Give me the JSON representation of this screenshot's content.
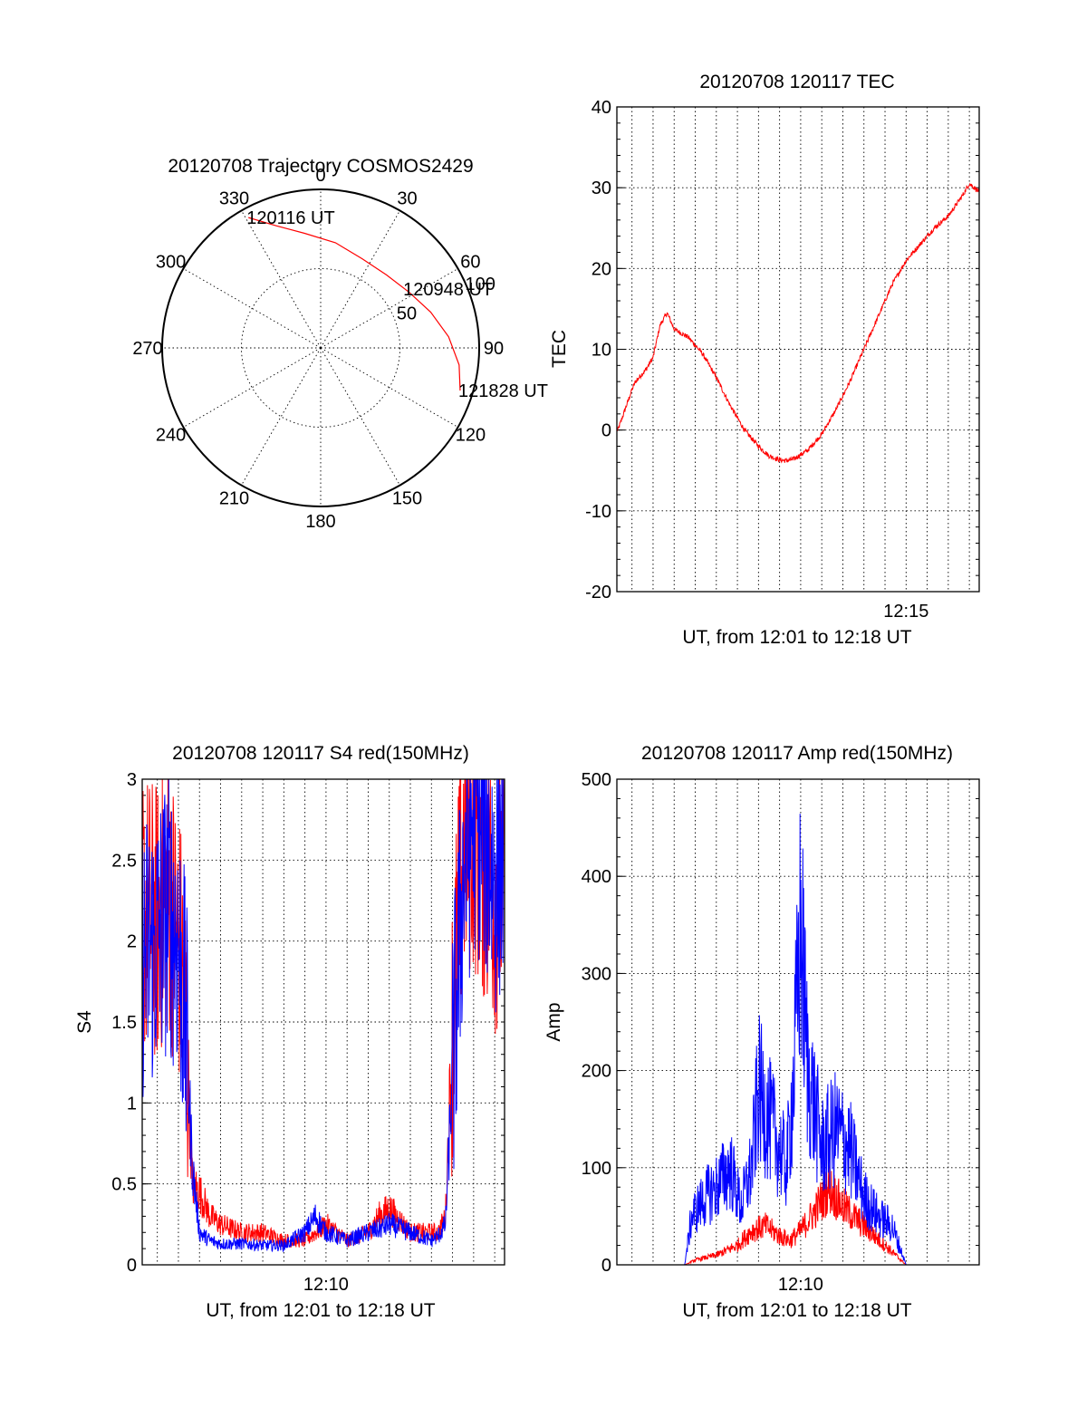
{
  "colors": {
    "red": "#ff0000",
    "blue": "#0000ff"
  },
  "chart_data": [
    {
      "type": "polar",
      "title": "20120708 Trajectory COSMOS2429",
      "azimuth_labels": [
        "0",
        "30",
        "60",
        "90",
        "120",
        "150",
        "180",
        "210",
        "240",
        "270",
        "300",
        "330"
      ],
      "radial_labels": [
        "50",
        "100"
      ],
      "rlim": [
        0,
        100
      ],
      "track": {
        "color": "#ff0000",
        "points": [
          {
            "az": 331,
            "r": 94
          },
          {
            "az": 340,
            "r": 82
          },
          {
            "az": 352,
            "r": 73
          },
          {
            "az": 8,
            "r": 67
          },
          {
            "az": 25,
            "r": 62
          },
          {
            "az": 42,
            "r": 62
          },
          {
            "az": 58,
            "r": 66
          },
          {
            "az": 72,
            "r": 73
          },
          {
            "az": 85,
            "r": 81
          },
          {
            "az": 97,
            "r": 88
          },
          {
            "az": 107,
            "r": 92
          }
        ]
      },
      "annotations": [
        {
          "text": "120116 UT",
          "az": 331,
          "r": 94
        },
        {
          "text": "120948 UT",
          "az": 55,
          "r": 65
        },
        {
          "text": "121828 UT",
          "az": 107,
          "r": 92
        }
      ]
    },
    {
      "type": "line",
      "title": "20120708 120117 TEC",
      "xlabel": "UT, from 12:01 to 12:18 UT",
      "ylabel": "TEC",
      "xlim": [
        "12:01:17",
        "12:18:28"
      ],
      "ylim": [
        -20,
        40
      ],
      "yticks": [
        -20,
        -10,
        0,
        10,
        20,
        30,
        40
      ],
      "xtick_labels": [
        {
          "t": "12:15",
          "label": "12:15"
        }
      ],
      "series": [
        {
          "color": "#ff0000",
          "x": [
            "12:01:20",
            "12:01:40",
            "12:02:00",
            "12:02:10",
            "12:02:30",
            "12:02:40",
            "12:03:00",
            "12:03:20",
            "12:03:40",
            "12:04:00",
            "12:04:40",
            "12:05:20",
            "12:06:00",
            "12:06:40",
            "12:07:20",
            "12:08:00",
            "12:08:30",
            "12:09:00",
            "12:09:20",
            "12:09:40",
            "12:10:20",
            "12:11:00",
            "12:11:40",
            "12:12:20",
            "12:13:00",
            "12:13:40",
            "12:14:20",
            "12:15:00",
            "12:15:40",
            "12:16:20",
            "12:17:00",
            "12:17:40",
            "12:18:00",
            "12:18:28"
          ],
          "y": [
            0,
            2.5,
            5,
            6,
            7,
            7.5,
            9,
            13,
            14.5,
            12.5,
            11.5,
            9.5,
            6.5,
            3,
            0,
            -2,
            -3.2,
            -3.7,
            -3.8,
            -3.6,
            -2.5,
            -0.5,
            2.5,
            6,
            10,
            14,
            18,
            21,
            23,
            25,
            26.5,
            29,
            30.5,
            29.5
          ]
        }
      ]
    },
    {
      "type": "line",
      "title": "20120708 120117 S4 red(150MHz)",
      "xlabel": "UT, from 12:01 to 12:18 UT",
      "ylabel": "S4",
      "xlim": [
        "12:01:17",
        "12:18:28"
      ],
      "ylim": [
        0,
        3
      ],
      "yticks": [
        0,
        0.5,
        1,
        1.5,
        2,
        2.5,
        3
      ],
      "xtick_labels": [
        {
          "t": "12:10",
          "label": "12:10"
        }
      ],
      "series": [
        {
          "color": "#ff0000",
          "x": [
            "12:01:17",
            "12:02:00",
            "12:02:30",
            "12:03:00",
            "12:03:20",
            "12:03:40",
            "12:04:00",
            "12:04:30",
            "12:05:00",
            "12:06:00",
            "12:07:00",
            "12:08:00",
            "12:09:00",
            "12:09:30",
            "12:10:00",
            "12:11:00",
            "12:12:00",
            "12:12:30",
            "12:13:00",
            "12:14:00",
            "12:15:00",
            "12:15:20",
            "12:15:40",
            "12:16:00",
            "12:16:30",
            "12:17:00",
            "12:17:30",
            "12:18:00",
            "12:18:28"
          ],
          "y": [
            2.2,
            2.1,
            2.3,
            2.0,
            1.6,
            0.5,
            0.45,
            0.3,
            0.25,
            0.2,
            0.2,
            0.15,
            0.15,
            0.2,
            0.25,
            0.15,
            0.2,
            0.3,
            0.35,
            0.2,
            0.2,
            0.2,
            0.3,
            1.5,
            2.6,
            2.7,
            2.5,
            2.3,
            2.4
          ]
        },
        {
          "color": "#0000ff",
          "x": [
            "12:01:17",
            "12:02:00",
            "12:02:30",
            "12:03:00",
            "12:03:20",
            "12:03:40",
            "12:04:00",
            "12:04:30",
            "12:05:00",
            "12:06:00",
            "12:07:00",
            "12:08:00",
            "12:09:00",
            "12:09:30",
            "12:10:00",
            "12:11:00",
            "12:12:00",
            "12:12:30",
            "12:13:00",
            "12:14:00",
            "12:15:00",
            "12:15:20",
            "12:15:40",
            "12:16:00",
            "12:16:30",
            "12:17:00",
            "12:17:30",
            "12:18:00",
            "12:18:28"
          ],
          "y": [
            1.9,
            2.0,
            2.2,
            2.0,
            1.5,
            0.6,
            0.2,
            0.15,
            0.13,
            0.13,
            0.12,
            0.12,
            0.2,
            0.3,
            0.2,
            0.15,
            0.2,
            0.22,
            0.25,
            0.2,
            0.15,
            0.18,
            0.25,
            1.2,
            2.4,
            2.8,
            2.7,
            2.4,
            2.6
          ]
        }
      ]
    },
    {
      "type": "line",
      "title": "20120708 120117 Amp red(150MHz)",
      "xlabel": "UT, from 12:01 to 12:18 UT",
      "ylabel": "Amp",
      "xlim": [
        "12:01:17",
        "12:18:28"
      ],
      "ylim": [
        0,
        500
      ],
      "yticks": [
        0,
        100,
        200,
        300,
        400,
        500
      ],
      "xtick_labels": [
        {
          "t": "12:10",
          "label": "12:10"
        }
      ],
      "series": [
        {
          "color": "#ff0000",
          "x": [
            "12:01:17",
            "12:03:00",
            "12:04:00",
            "12:04:30",
            "12:05:00",
            "12:06:00",
            "12:07:00",
            "12:07:40",
            "12:08:20",
            "12:09:00",
            "12:09:30",
            "12:10:00",
            "12:10:40",
            "12:11:20",
            "12:12:00",
            "12:13:00",
            "12:14:00",
            "12:14:30",
            "12:15:00",
            "12:16:00",
            "12:18:28"
          ],
          "y": [
            0,
            0,
            0,
            0,
            5,
            10,
            20,
            35,
            40,
            30,
            25,
            35,
            55,
            80,
            60,
            40,
            20,
            10,
            0,
            0,
            0
          ]
        },
        {
          "color": "#0000ff",
          "x": [
            "12:01:17",
            "12:03:00",
            "12:04:00",
            "12:04:30",
            "12:04:50",
            "12:05:30",
            "12:06:00",
            "12:06:40",
            "12:07:10",
            "12:07:40",
            "12:08:00",
            "12:08:30",
            "12:09:00",
            "12:09:20",
            "12:09:40",
            "12:10:00",
            "12:10:20",
            "12:10:40",
            "12:11:00",
            "12:11:40",
            "12:12:20",
            "12:13:00",
            "12:13:40",
            "12:14:20",
            "12:15:00",
            "12:16:00",
            "12:18:28"
          ],
          "y": [
            0,
            0,
            0,
            0,
            50,
            70,
            80,
            100,
            60,
            100,
            180,
            150,
            120,
            100,
            190,
            350,
            200,
            160,
            120,
            140,
            120,
            70,
            50,
            40,
            0,
            0,
            0
          ]
        }
      ]
    }
  ]
}
